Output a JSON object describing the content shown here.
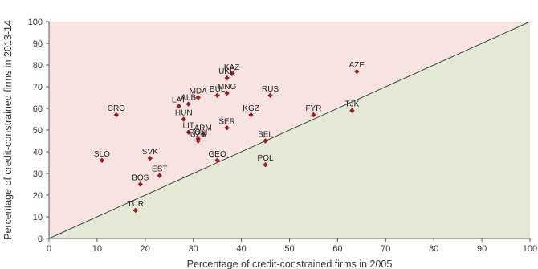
{
  "chart_data": {
    "type": "scatter",
    "xlabel": "Percentage of credit-constrained firms in 2005",
    "ylabel": "Percentage of credit-constrained firms in 2013-14",
    "xlim": [
      0,
      100
    ],
    "ylim": [
      0,
      100
    ],
    "x_ticks": [
      "0",
      "10",
      "20",
      "30",
      "40",
      "50",
      "60",
      "70",
      "80",
      "90",
      "100"
    ],
    "y_ticks": [
      "0",
      "10",
      "20",
      "30",
      "40",
      "50",
      "60",
      "70",
      "80",
      "90",
      "100"
    ],
    "grid": false,
    "reference_line": {
      "from": [
        0,
        0
      ],
      "to": [
        100,
        100
      ]
    },
    "points": [
      {
        "label": "KAZ",
        "x": 38,
        "y": 76
      },
      {
        "label": "UKR",
        "x": 37,
        "y": 74
      },
      {
        "label": "MNG",
        "x": 37,
        "y": 67
      },
      {
        "label": "AZE",
        "x": 64,
        "y": 77
      },
      {
        "label": "RUS",
        "x": 46,
        "y": 66
      },
      {
        "label": "MDA",
        "x": 31,
        "y": 65
      },
      {
        "label": "BUL",
        "x": 35,
        "y": 66
      },
      {
        "label": "ALB",
        "x": 29,
        "y": 62
      },
      {
        "label": "LAT",
        "x": 27,
        "y": 61
      },
      {
        "label": "CRO",
        "x": 14,
        "y": 57
      },
      {
        "label": "KGZ",
        "x": 42,
        "y": 57
      },
      {
        "label": "FYR",
        "x": 55,
        "y": 57
      },
      {
        "label": "TJK",
        "x": 63,
        "y": 59
      },
      {
        "label": "HUN",
        "x": 28,
        "y": 55
      },
      {
        "label": "SER",
        "x": 37,
        "y": 51
      },
      {
        "label": "ARM",
        "x": 32,
        "y": 48
      },
      {
        "label": "LIT",
        "x": 29,
        "y": 49
      },
      {
        "label": "UZB",
        "x": 31,
        "y": 45
      },
      {
        "label": "ROM",
        "x": 31,
        "y": 46
      },
      {
        "label": "BEL",
        "x": 45,
        "y": 45
      },
      {
        "label": "GEO",
        "x": 35,
        "y": 36
      },
      {
        "label": "POL",
        "x": 45,
        "y": 34
      },
      {
        "label": "SLO",
        "x": 11,
        "y": 36
      },
      {
        "label": "SVK",
        "x": 21,
        "y": 37
      },
      {
        "label": "EST",
        "x": 23,
        "y": 29
      },
      {
        "label": "BOS",
        "x": 19,
        "y": 25
      },
      {
        "label": "TUR",
        "x": 18,
        "y": 13
      }
    ]
  },
  "colors": {
    "upper_region": "#f7e4e1",
    "lower_region": "#e6e8d6",
    "marker": "#9b1c1f",
    "diagonal": "#2f4f3a",
    "axis": "#555555"
  }
}
